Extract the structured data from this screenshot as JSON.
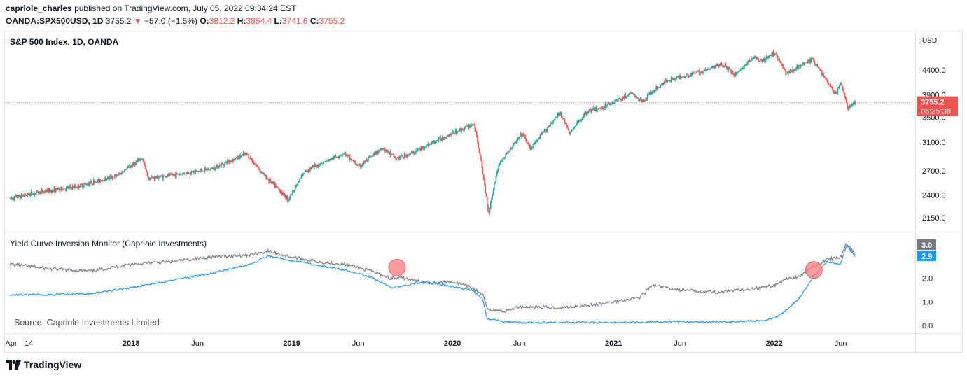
{
  "header": {
    "author": "capriole_charles",
    "published_text": "published on TradingView.com, July 05, 2022 09:34:24 EST",
    "symbol": "OANDA:SPX500USD, 1D",
    "last": "3755.2",
    "change_arrow": "▼",
    "change": "−57.0 (−1.5%)",
    "o_label": "O:",
    "o_value": "3812.2",
    "h_label": "H:",
    "h_value": "3854.4",
    "l_label": "L:",
    "l_value": "3741.6",
    "c_label": "C:",
    "c_value": "3755.2"
  },
  "brand": {
    "logo_icon": "tradingview-logo-icon",
    "name": "TradingView"
  },
  "colors": {
    "up": "#26a69a",
    "down": "#ef5350",
    "grey_series": "#787b86",
    "blue_series": "#2196f3",
    "marker": "#f77c80",
    "price_tag": "#ef5350"
  },
  "chart_data": [
    {
      "type": "candlestick",
      "title": "S&P 500 Index, 1D, OANDA",
      "currency_label": "USD",
      "y_ticks": [
        "4400.0",
        "3900.0",
        "3100.0",
        "2700.0",
        "2400.0",
        "2150.0"
      ],
      "last_price": "3755.2",
      "countdown": "06:25:38",
      "partial_hidden_tick": "3500.0",
      "x": [
        "2017-04-01",
        "2017-06-01",
        "2017-09-01",
        "2017-12-01",
        "2018-01-26",
        "2018-02-09",
        "2018-04-01",
        "2018-07-01",
        "2018-09-20",
        "2018-10-30",
        "2018-12-24",
        "2019-02-01",
        "2019-04-30",
        "2019-06-03",
        "2019-07-26",
        "2019-08-26",
        "2019-10-01",
        "2019-12-01",
        "2020-02-19",
        "2020-03-23",
        "2020-04-15",
        "2020-06-08",
        "2020-06-26",
        "2020-09-02",
        "2020-09-23",
        "2020-11-01",
        "2020-12-01",
        "2021-02-12",
        "2021-03-04",
        "2021-05-01",
        "2021-08-01",
        "2021-09-02",
        "2021-10-04",
        "2021-11-18",
        "2021-12-01",
        "2022-01-03",
        "2022-01-27",
        "2022-03-29",
        "2022-05-20",
        "2022-06-01",
        "2022-06-16",
        "2022-07-05"
      ],
      "close": [
        2360,
        2430,
        2500,
        2640,
        2870,
        2600,
        2640,
        2720,
        2930,
        2640,
        2350,
        2700,
        2940,
        2750,
        3020,
        2860,
        2940,
        3140,
        3390,
        2190,
        2780,
        3230,
        3000,
        3580,
        3230,
        3600,
        3650,
        3930,
        3770,
        4180,
        4400,
        4540,
        4300,
        4700,
        4560,
        4790,
        4330,
        4630,
        3900,
        4150,
        3670,
        3755.2
      ]
    },
    {
      "type": "line",
      "title": "Yield Curve Inversion Monitor (Capriole Investments)",
      "y_ticks": [
        "2.0",
        "1.0",
        "0.0"
      ],
      "last_values": [
        "3.0",
        "2.9"
      ],
      "annotation": "Source: Capriole Investments Limited",
      "x_tick_labels": [
        "Apr",
        "14",
        "2018",
        "Jun",
        "2019",
        "Jun",
        "2020",
        "Jun",
        "2021",
        "Jun",
        "2022",
        "Jun"
      ],
      "x": [
        "2017-04-01",
        "2017-07-01",
        "2017-10-01",
        "2018-01-01",
        "2018-04-01",
        "2018-07-01",
        "2018-10-01",
        "2018-11-08",
        "2019-01-01",
        "2019-03-01",
        "2019-05-01",
        "2019-07-01",
        "2019-08-15",
        "2019-09-15",
        "2019-11-01",
        "2020-01-01",
        "2020-02-15",
        "2020-03-10",
        "2020-03-20",
        "2020-04-30",
        "2020-06-01",
        "2020-09-01",
        "2020-12-01",
        "2021-03-01",
        "2021-03-31",
        "2021-06-01",
        "2021-09-01",
        "2021-12-01",
        "2022-01-01",
        "2022-02-01",
        "2022-03-01",
        "2022-04-01",
        "2022-05-01",
        "2022-06-01",
        "2022-06-14",
        "2022-07-05"
      ],
      "series": [
        {
          "name": "",
          "values": [
            2.6,
            2.4,
            2.3,
            2.6,
            2.7,
            2.9,
            3.0,
            3.15,
            2.9,
            2.7,
            2.6,
            2.3,
            2.0,
            2.0,
            1.8,
            1.85,
            1.6,
            1.3,
            0.7,
            0.6,
            0.8,
            0.75,
            0.9,
            1.2,
            1.7,
            1.5,
            1.4,
            1.6,
            1.7,
            2.0,
            2.1,
            2.5,
            2.8,
            2.9,
            3.5,
            3.0
          ]
        },
        {
          "name": "",
          "values": [
            1.3,
            1.3,
            1.35,
            1.6,
            1.9,
            2.2,
            2.6,
            2.95,
            2.75,
            2.55,
            2.35,
            2.05,
            1.6,
            1.7,
            1.85,
            1.65,
            1.5,
            1.1,
            0.3,
            0.15,
            0.12,
            0.12,
            0.12,
            0.12,
            0.15,
            0.15,
            0.15,
            0.2,
            0.3,
            0.7,
            1.2,
            2.1,
            2.7,
            2.6,
            3.4,
            2.9
          ]
        }
      ],
      "markers": [
        {
          "date": "2019-08-28",
          "value": 2.45
        },
        {
          "date": "2022-04-01",
          "value": 2.35
        }
      ]
    }
  ]
}
